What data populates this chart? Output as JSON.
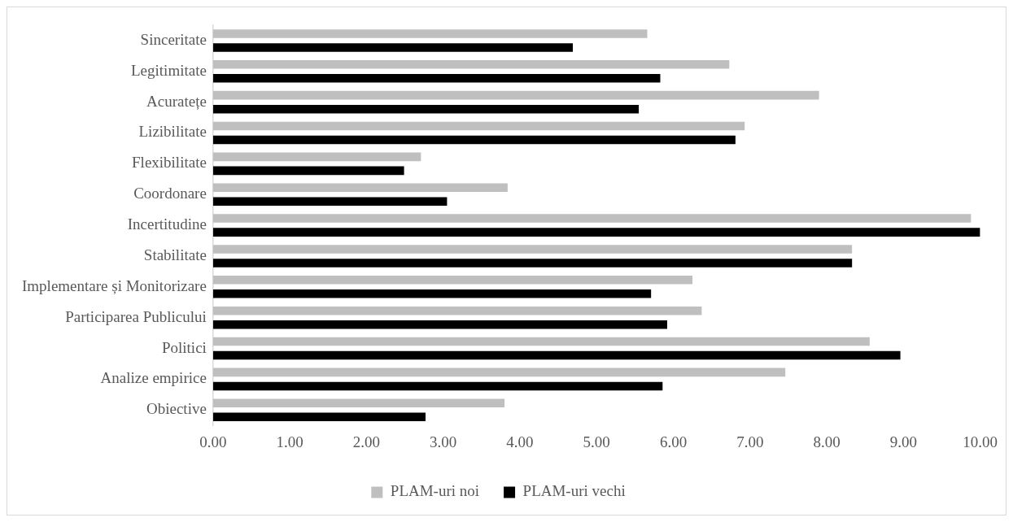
{
  "chart_data": {
    "type": "bar",
    "orientation": "horizontal",
    "categories": [
      "Sinceritate",
      "Legitimitate",
      "Acuratețe",
      "Lizibilitate",
      "Flexibilitate",
      "Coordonare",
      "Incertitudine",
      "Stabilitate",
      "Implementare și Monitorizare",
      "Participarea Publicului",
      "Politici",
      "Analize empirice",
      "Obiective"
    ],
    "series": [
      {
        "name": "PLAM-uri noi",
        "color": "#bfbfbf",
        "values": [
          5.66,
          6.73,
          7.9,
          6.93,
          2.71,
          3.84,
          9.88,
          8.33,
          6.25,
          6.37,
          8.56,
          7.46,
          3.8
        ]
      },
      {
        "name": "PLAM-uri vechi",
        "color": "#000000",
        "values": [
          4.69,
          5.83,
          5.55,
          6.81,
          2.49,
          3.05,
          10.0,
          8.33,
          5.71,
          5.92,
          8.96,
          5.86,
          2.77
        ]
      }
    ],
    "xlim": [
      0,
      10
    ],
    "xticks": [
      {
        "value": 0,
        "label": "0.00"
      },
      {
        "value": 1,
        "label": "1.00"
      },
      {
        "value": 2,
        "label": "2.00"
      },
      {
        "value": 3,
        "label": "3.00"
      },
      {
        "value": 4,
        "label": "4.00"
      },
      {
        "value": 5,
        "label": "5.00"
      },
      {
        "value": 6,
        "label": "6.00"
      },
      {
        "value": 7,
        "label": "7.00"
      },
      {
        "value": 8,
        "label": "8.00"
      },
      {
        "value": 9,
        "label": "9.00"
      },
      {
        "value": 10,
        "label": "10.00"
      }
    ],
    "grid": false,
    "legend": "bottom"
  }
}
